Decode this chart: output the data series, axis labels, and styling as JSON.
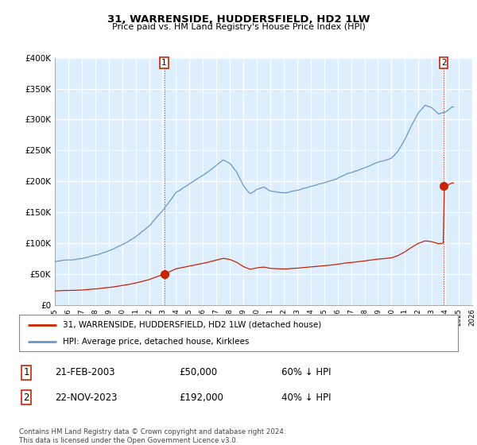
{
  "title": "31, WARRENSIDE, HUDDERSFIELD, HD2 1LW",
  "subtitle": "Price paid vs. HM Land Registry's House Price Index (HPI)",
  "bg_color": "#ffffff",
  "plot_bg_color": "#ddeeff",
  "grid_color": "#aabbcc",
  "hpi_color": "#6699cc",
  "price_color": "#cc2200",
  "dashed_color": "#cc2200",
  "ylim": [
    0,
    400000
  ],
  "yticks": [
    0,
    50000,
    100000,
    150000,
    200000,
    250000,
    300000,
    350000,
    400000
  ],
  "ytick_labels": [
    "£0",
    "£50K",
    "£100K",
    "£150K",
    "£200K",
    "£250K",
    "£300K",
    "£350K",
    "£400K"
  ],
  "legend_label_red": "31, WARRENSIDE, HUDDERSFIELD, HD2 1LW (detached house)",
  "legend_label_blue": "HPI: Average price, detached house, Kirklees",
  "annotation1_label": "1",
  "annotation1_date": "21-FEB-2003",
  "annotation1_price": "£50,000",
  "annotation1_pct": "60% ↓ HPI",
  "annotation2_label": "2",
  "annotation2_date": "22-NOV-2023",
  "annotation2_price": "£192,000",
  "annotation2_pct": "40% ↓ HPI",
  "footer": "Contains HM Land Registry data © Crown copyright and database right 2024.\nThis data is licensed under the Open Government Licence v3.0.",
  "sale1_x": 2003.12,
  "sale1_y": 50000,
  "sale2_x": 2023.88,
  "sale2_y": 192000,
  "xlim_start": 1995.0,
  "xlim_end": 2026.0
}
